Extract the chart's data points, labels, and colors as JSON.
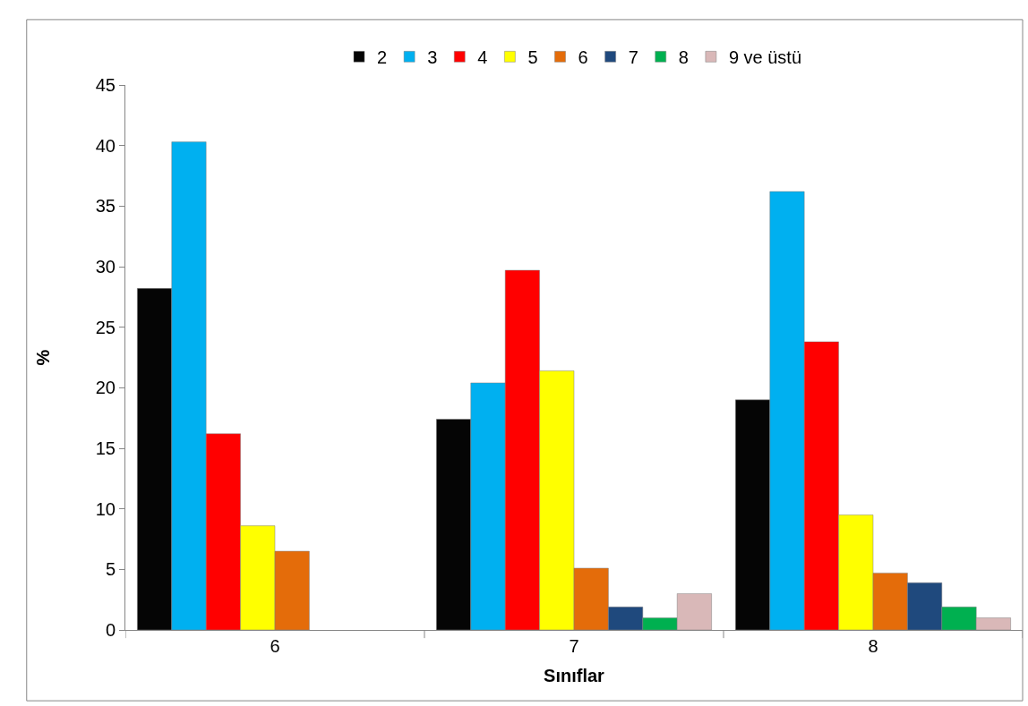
{
  "chart_data": {
    "type": "bar",
    "xlabel": "Sınıflar",
    "ylabel": "%",
    "categories": [
      "6",
      "7",
      "8"
    ],
    "series": [
      {
        "name": "2",
        "color": "#050505",
        "values": [
          28.2,
          17.4,
          19.0
        ]
      },
      {
        "name": "3",
        "color": "#00b0f0",
        "values": [
          40.3,
          20.4,
          36.2
        ]
      },
      {
        "name": "4",
        "color": "#ff0000",
        "values": [
          16.2,
          29.7,
          23.8
        ]
      },
      {
        "name": "5",
        "color": "#ffff00",
        "values": [
          8.6,
          21.4,
          9.5
        ]
      },
      {
        "name": "6",
        "color": "#e46c0a",
        "values": [
          6.5,
          5.1,
          4.7
        ]
      },
      {
        "name": "7",
        "color": "#1f497d",
        "values": [
          null,
          1.9,
          3.9
        ]
      },
      {
        "name": "8",
        "color": "#00b050",
        "values": [
          null,
          1.0,
          1.9
        ]
      },
      {
        "name": "9 ve üstü",
        "color": "#d9b8b8",
        "values": [
          null,
          3.0,
          1.0
        ]
      }
    ],
    "ylim": [
      0,
      45
    ],
    "yticks": [
      0,
      5,
      10,
      15,
      20,
      25,
      30,
      35,
      40,
      45
    ],
    "legend": "top"
  }
}
